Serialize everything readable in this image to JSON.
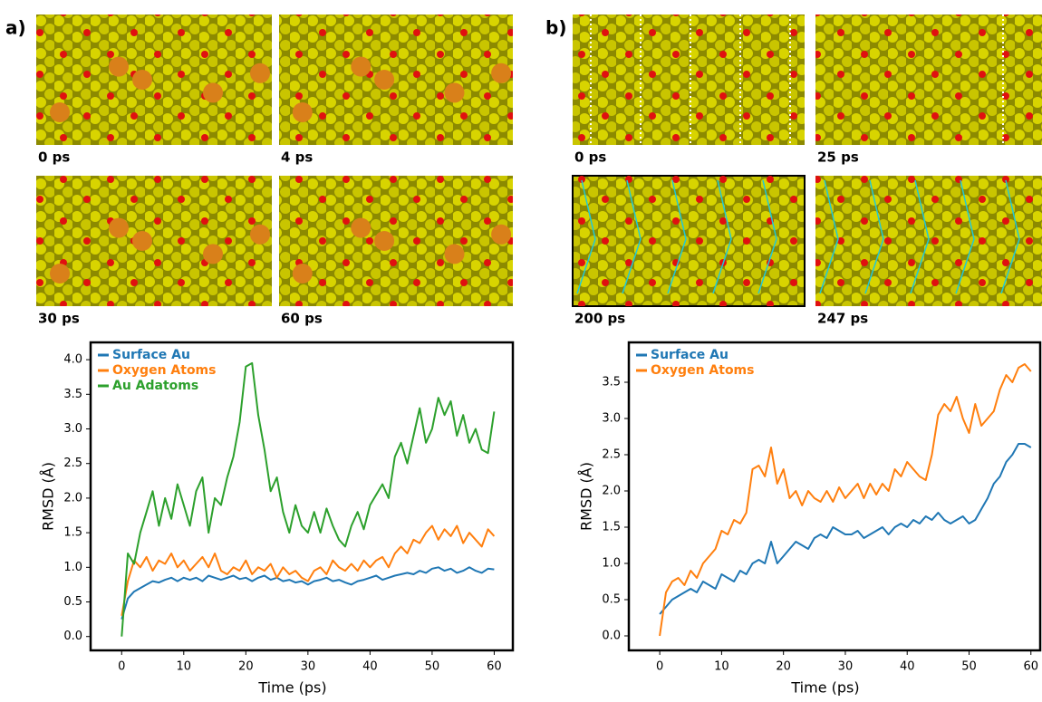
{
  "panel_labels": [
    "a)",
    "b)"
  ],
  "image_captions": [
    [
      "0 ps",
      "4 ps",
      "30 ps",
      "60 ps"
    ],
    [
      "0 ps",
      "25 ps",
      "200 ps",
      "247 ps"
    ]
  ],
  "chart_data": [
    {
      "type": "line",
      "xlabel": "Time (ps)",
      "ylabel": "RMSD (Å)",
      "legend": "upper left",
      "xlim": [
        -5,
        63
      ],
      "ylim": [
        -0.2,
        4.25
      ],
      "xticks": [
        0,
        10,
        20,
        30,
        40,
        50,
        60
      ],
      "yticks": [
        {
          "value": 0,
          "label": "0.0"
        },
        0.5,
        {
          "value": 1,
          "label": "1.0"
        },
        1.5,
        {
          "value": 2,
          "label": "2.0"
        },
        2.5,
        {
          "value": 3,
          "label": "3.0"
        },
        3.5,
        {
          "value": 4,
          "label": "4.0"
        }
      ],
      "x": [
        0,
        1,
        2,
        3,
        4,
        5,
        6,
        7,
        8,
        9,
        10,
        11,
        12,
        13,
        14,
        15,
        16,
        17,
        18,
        19,
        20,
        21,
        22,
        23,
        24,
        25,
        26,
        27,
        28,
        29,
        30,
        31,
        32,
        33,
        34,
        35,
        36,
        37,
        38,
        39,
        40,
        41,
        42,
        43,
        44,
        45,
        46,
        47,
        48,
        49,
        50,
        51,
        52,
        53,
        54,
        55,
        56,
        57,
        58,
        59,
        60
      ],
      "series": [
        {
          "name": "Surface Au",
          "color": "#1f77b4",
          "values": [
            0.25,
            0.55,
            0.65,
            0.7,
            0.75,
            0.8,
            0.78,
            0.82,
            0.85,
            0.8,
            0.85,
            0.82,
            0.85,
            0.8,
            0.88,
            0.85,
            0.82,
            0.85,
            0.88,
            0.83,
            0.85,
            0.8,
            0.85,
            0.88,
            0.82,
            0.85,
            0.8,
            0.82,
            0.78,
            0.8,
            0.75,
            0.8,
            0.82,
            0.85,
            0.8,
            0.82,
            0.78,
            0.75,
            0.8,
            0.82,
            0.85,
            0.88,
            0.82,
            0.85,
            0.88,
            0.9,
            0.92,
            0.9,
            0.95,
            0.92,
            0.98,
            1.0,
            0.95,
            0.98,
            0.92,
            0.95,
            1.0,
            0.95,
            0.92,
            0.98,
            0.97
          ]
        },
        {
          "name": "Oxygen Atoms",
          "color": "#ff7f0e",
          "values": [
            0.3,
            0.8,
            1.1,
            1.0,
            1.15,
            0.95,
            1.1,
            1.05,
            1.2,
            1.0,
            1.1,
            0.95,
            1.05,
            1.15,
            1.0,
            1.2,
            0.95,
            0.9,
            1.0,
            0.95,
            1.1,
            0.9,
            1.0,
            0.95,
            1.05,
            0.85,
            1.0,
            0.9,
            0.95,
            0.85,
            0.8,
            0.95,
            1.0,
            0.9,
            1.1,
            1.0,
            0.95,
            1.05,
            0.95,
            1.1,
            1.0,
            1.1,
            1.15,
            1.0,
            1.2,
            1.3,
            1.2,
            1.4,
            1.35,
            1.5,
            1.6,
            1.4,
            1.55,
            1.45,
            1.6,
            1.35,
            1.5,
            1.4,
            1.3,
            1.55,
            1.45
          ]
        },
        {
          "name": "Au Adatoms",
          "color": "#2ca02c",
          "values": [
            0.0,
            1.2,
            1.05,
            1.5,
            1.8,
            2.1,
            1.6,
            2.0,
            1.7,
            2.2,
            1.9,
            1.6,
            2.1,
            2.3,
            1.5,
            2.0,
            1.9,
            2.3,
            2.6,
            3.1,
            3.9,
            3.95,
            3.2,
            2.7,
            2.1,
            2.3,
            1.8,
            1.5,
            1.9,
            1.6,
            1.5,
            1.8,
            1.5,
            1.85,
            1.6,
            1.4,
            1.3,
            1.6,
            1.8,
            1.55,
            1.9,
            2.05,
            2.2,
            2.0,
            2.6,
            2.8,
            2.5,
            2.9,
            3.3,
            2.8,
            3.0,
            3.45,
            3.2,
            3.4,
            2.9,
            3.2,
            2.8,
            3.0,
            2.7,
            2.65,
            3.25
          ]
        }
      ]
    },
    {
      "type": "line",
      "xlabel": "Time (ps)",
      "ylabel": "RMSD (Å)",
      "legend": "upper left",
      "xlim": [
        -5,
        61.5
      ],
      "ylim": [
        -0.2,
        4.05
      ],
      "xticks": [
        0,
        10,
        20,
        30,
        40,
        50,
        60
      ],
      "yticks": [
        {
          "value": 0,
          "label": "0.0"
        },
        0.5,
        {
          "value": 1,
          "label": "1.0"
        },
        1.5,
        {
          "value": 2,
          "label": "2.0"
        },
        2.5,
        {
          "value": 3,
          "label": "3.0"
        },
        3.5
      ],
      "x": [
        0,
        1,
        2,
        3,
        4,
        5,
        6,
        7,
        8,
        9,
        10,
        11,
        12,
        13,
        14,
        15,
        16,
        17,
        18,
        19,
        20,
        21,
        22,
        23,
        24,
        25,
        26,
        27,
        28,
        29,
        30,
        31,
        32,
        33,
        34,
        35,
        36,
        37,
        38,
        39,
        40,
        41,
        42,
        43,
        44,
        45,
        46,
        47,
        48,
        49,
        50,
        51,
        52,
        53,
        54,
        55,
        56,
        57,
        58,
        59,
        60
      ],
      "series": [
        {
          "name": "Surface Au",
          "color": "#1f77b4",
          "values": [
            0.3,
            0.4,
            0.5,
            0.55,
            0.6,
            0.65,
            0.6,
            0.75,
            0.7,
            0.65,
            0.85,
            0.8,
            0.75,
            0.9,
            0.85,
            1.0,
            1.05,
            1.0,
            1.3,
            1.0,
            1.1,
            1.2,
            1.3,
            1.25,
            1.2,
            1.35,
            1.4,
            1.35,
            1.5,
            1.45,
            1.4,
            1.4,
            1.45,
            1.35,
            1.4,
            1.45,
            1.5,
            1.4,
            1.5,
            1.55,
            1.5,
            1.6,
            1.55,
            1.65,
            1.6,
            1.7,
            1.6,
            1.55,
            1.6,
            1.65,
            1.55,
            1.6,
            1.75,
            1.9,
            2.1,
            2.2,
            2.4,
            2.5,
            2.65,
            2.65,
            2.6
          ]
        },
        {
          "name": "Oxygen Atoms",
          "color": "#ff7f0e",
          "values": [
            0.0,
            0.6,
            0.75,
            0.8,
            0.7,
            0.9,
            0.8,
            1.0,
            1.1,
            1.2,
            1.45,
            1.4,
            1.6,
            1.55,
            1.7,
            2.3,
            2.35,
            2.2,
            2.6,
            2.1,
            2.3,
            1.9,
            2.0,
            1.8,
            2.0,
            1.9,
            1.85,
            2.0,
            1.85,
            2.05,
            1.9,
            2.0,
            2.1,
            1.9,
            2.1,
            1.95,
            2.1,
            2.0,
            2.3,
            2.2,
            2.4,
            2.3,
            2.2,
            2.15,
            2.5,
            3.05,
            3.2,
            3.1,
            3.3,
            3.0,
            2.8,
            3.2,
            2.9,
            3.0,
            3.1,
            3.4,
            3.6,
            3.5,
            3.7,
            3.75,
            3.65
          ]
        }
      ]
    }
  ]
}
